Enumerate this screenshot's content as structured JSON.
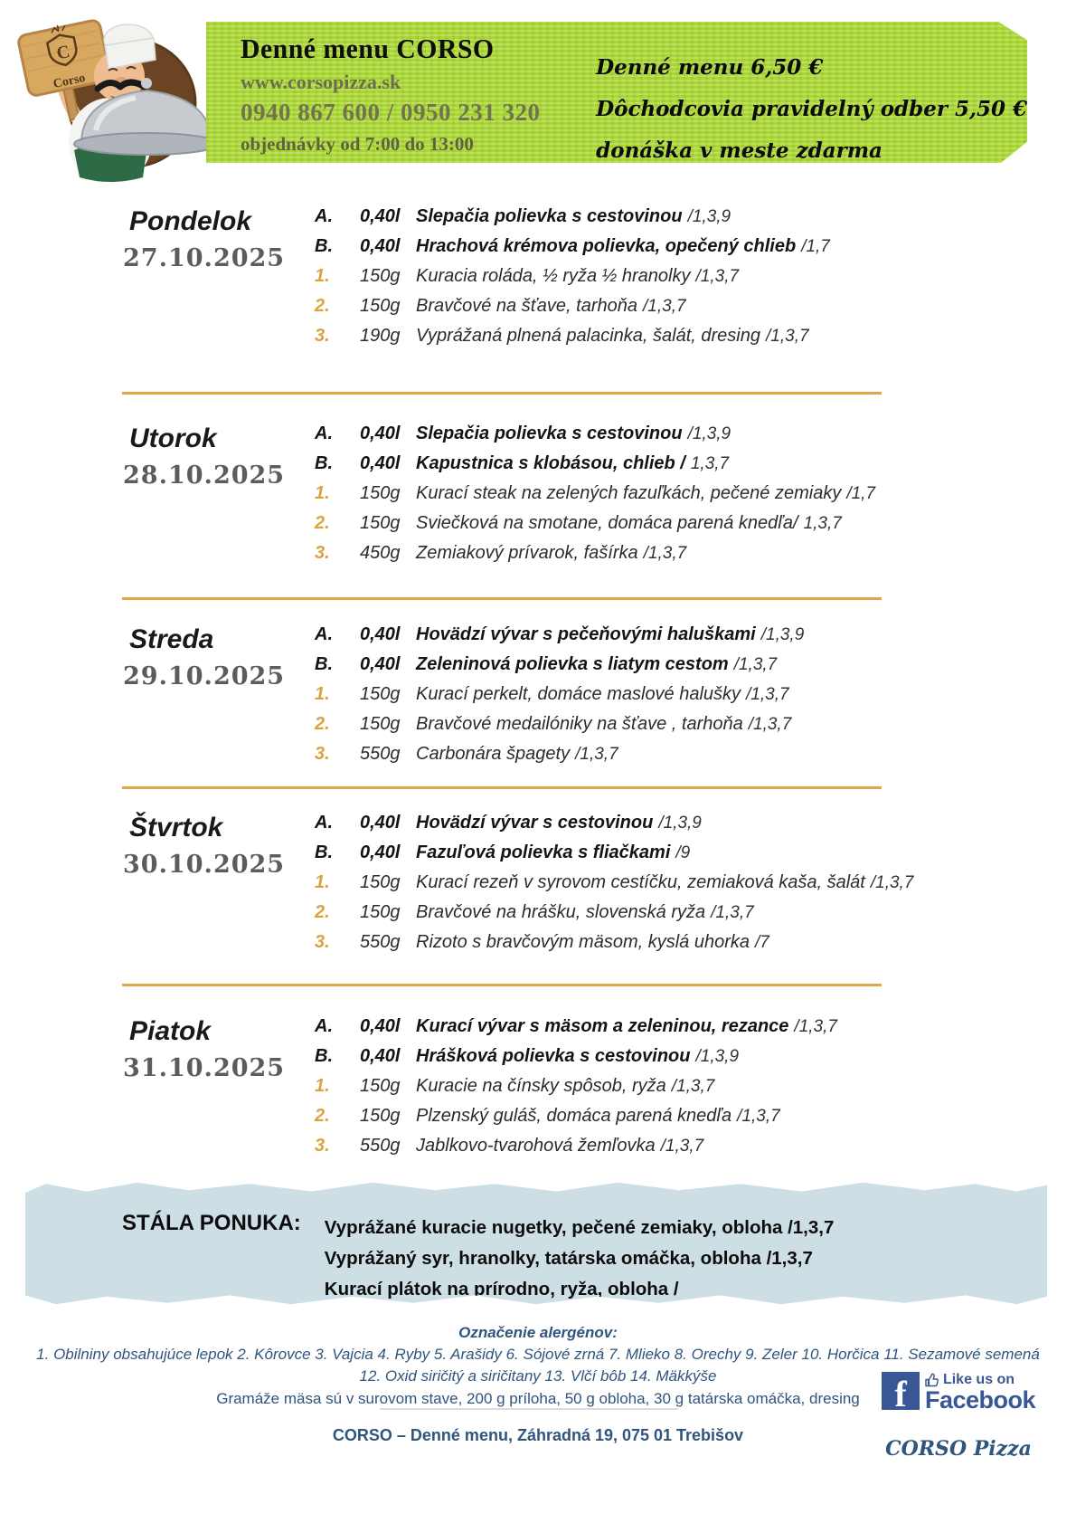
{
  "header": {
    "logo": {
      "sign_text": "Corso",
      "sign_letter": "C"
    },
    "banner": {
      "title": "Denné menu CORSO",
      "website": "www.corsopizza.sk",
      "phones": "0940 867 600 / 0950 231 320",
      "hours": "objednávky od 7:00 do 13:00",
      "price_lines": [
        "Denné menu 6,50 €",
        "Dôchodcovia pravidelný odber 5,50 €",
        "donáška v meste zdarma"
      ]
    }
  },
  "days": [
    {
      "name": "Pondelok",
      "date": "27.10.2025",
      "items": [
        {
          "label": "A.",
          "portion": "0,40l",
          "name": "Slepačia polievka s cestovinou",
          "allergens": "/1,3,9",
          "kind": "soup"
        },
        {
          "label": "B.",
          "portion": "0,40l",
          "name": "Hrachová krémova polievka, opečený chlieb",
          "allergens": "/1,7",
          "kind": "soup"
        },
        {
          "label": "1.",
          "portion": "150g",
          "name": "Kuracia roláda, ½ ryža ½ hranolky",
          "allergens": "/1,3,7",
          "kind": "main"
        },
        {
          "label": "2.",
          "portion": "150g",
          "name": "Bravčové na šťave, tarhoňa",
          "allergens": "/1,3,7",
          "kind": "main"
        },
        {
          "label": "3.",
          "portion": "190g",
          "name": "Vyprážaná plnená palacinka, šalát, dresing",
          "allergens": "/1,3,7",
          "kind": "main"
        }
      ]
    },
    {
      "name": "Utorok",
      "date": "28.10.2025",
      "items": [
        {
          "label": "A.",
          "portion": "0,40l",
          "name": "Slepačia polievka s cestovinou",
          "allergens": "/1,3,9",
          "kind": "soup"
        },
        {
          "label": "B.",
          "portion": "0,40l",
          "name": "Kapustnica s klobásou, chlieb /",
          "allergens": "1,3,7",
          "kind": "soup"
        },
        {
          "label": "1.",
          "portion": "150g",
          "name": "Kurací steak na zelených fazuľkách, pečené zemiaky",
          "allergens": "/1,7",
          "kind": "main"
        },
        {
          "label": "2.",
          "portion": "150g",
          "name": "Sviečková na smotane, domáca parená knedľa/",
          "allergens": "1,3,7",
          "kind": "main"
        },
        {
          "label": "3.",
          "portion": "450g",
          "name": "Zemiakový prívarok, fašírka",
          "allergens": "/1,3,7",
          "kind": "main"
        }
      ]
    },
    {
      "name": "Streda",
      "date": "29.10.2025",
      "items": [
        {
          "label": "A.",
          "portion": "0,40l",
          "name": "Hovädzí vývar s pečeňovými haluškami",
          "allergens": "/1,3,9",
          "kind": "soup"
        },
        {
          "label": "B.",
          "portion": "0,40l",
          "name": "Zeleninová polievka s liatym cestom",
          "allergens": "/1,3,7",
          "kind": "soup"
        },
        {
          "label": "1.",
          "portion": "150g",
          "name": "Kurací perkelt, domáce maslové halušky",
          "allergens": "/1,3,7",
          "kind": "main"
        },
        {
          "label": "2.",
          "portion": "150g",
          "name": "Bravčové medailóniky na šťave , tarhoňa",
          "allergens": "/1,3,7",
          "kind": "main"
        },
        {
          "label": "3.",
          "portion": "550g",
          "name": "Carbonára špagety",
          "allergens": "/1,3,7",
          "kind": "main"
        }
      ]
    },
    {
      "name": "Štvrtok",
      "date": "30.10.2025",
      "items": [
        {
          "label": "A.",
          "portion": "0,40l",
          "name": "Hovädzí vývar s cestovinou",
          "allergens": "/1,3,9",
          "kind": "soup"
        },
        {
          "label": "B.",
          "portion": "0,40l",
          "name": "Fazuľová polievka s fliačkami",
          "allergens": "/9",
          "kind": "soup"
        },
        {
          "label": "1.",
          "portion": "150g",
          "name": "Kurací rezeň v syrovom cestíčku, zemiaková kaša, šalát",
          "allergens": "/1,3,7",
          "kind": "main"
        },
        {
          "label": "2.",
          "portion": "150g",
          "name": "Bravčové na hrášku, slovenská ryža",
          "allergens": "/1,3,7",
          "kind": "main"
        },
        {
          "label": "3.",
          "portion": "550g",
          "name": "Rizoto s bravčovým mäsom, kyslá uhorka",
          "allergens": "/7",
          "kind": "main"
        }
      ]
    },
    {
      "name": "Piatok",
      "date": "31.10.2025",
      "items": [
        {
          "label": "A.",
          "portion": "0,40l",
          "name": "Kurací vývar s mäsom a zeleninou, rezance",
          "allergens": "/1,3,7",
          "kind": "soup"
        },
        {
          "label": "B.",
          "portion": "0,40l",
          "name": "Hrášková polievka s cestovinou",
          "allergens": "/1,3,9",
          "kind": "soup"
        },
        {
          "label": "1.",
          "portion": "150g",
          "name": "Kuracie na čínsky spôsob, ryža",
          "allergens": "/1,3,7",
          "kind": "main"
        },
        {
          "label": "2.",
          "portion": "150g",
          "name": "Plzenský guláš, domáca parená knedľa",
          "allergens": "/1,3,7",
          "kind": "main"
        },
        {
          "label": "3.",
          "portion": "550g",
          "name": "Jablkovo-tvarohová žemľovka",
          "allergens": "/1,3,7",
          "kind": "main"
        }
      ]
    }
  ],
  "stala_ponuka": {
    "label": "STÁLA PONUKA:",
    "items": [
      "Vyprážané kuracie nugetky, pečené zemiaky, obloha /1,3,7",
      "Vyprážaný syr, hranolky, tatárska omáčka, obloha /1,3,7",
      "Kurací plátok na prírodno, ryža, obloha /"
    ]
  },
  "allergens": {
    "title": "Označenie alergénov:",
    "line1": "1. Obilniny obsahujúce lepok 2. Kôrovce 3. Vajcia 4. Ryby 5. Arašidy 6. Sójové zrná 7. Mlieko 8. Orechy 9. Zeler 10. Horčica 11. Sezamové semená",
    "line2": "12. Oxid siričitý a siričitany 13. Vlčí bôb 14. Mäkkýše",
    "note": "Gramáže  mäsa sú v surovom stave,  200 g príloha, 50 g obloha, 30 g tatárska omáčka, dresing"
  },
  "footer": {
    "address": "CORSO – Denné menu,  Záhradná 19, 075 01 Trebišov",
    "facebook": {
      "f": "f",
      "like_text": "Like us on",
      "brand": "Facebook"
    },
    "corso_pizza": "CORSO Pizza"
  },
  "colors": {
    "banner_green": "#aad733",
    "separator_gold": "#e1a84b",
    "item_number_orange": "#dda23e",
    "offer_box_blue": "#cddee5",
    "navy_text": "#2f547d",
    "facebook_blue": "#3a5795"
  }
}
